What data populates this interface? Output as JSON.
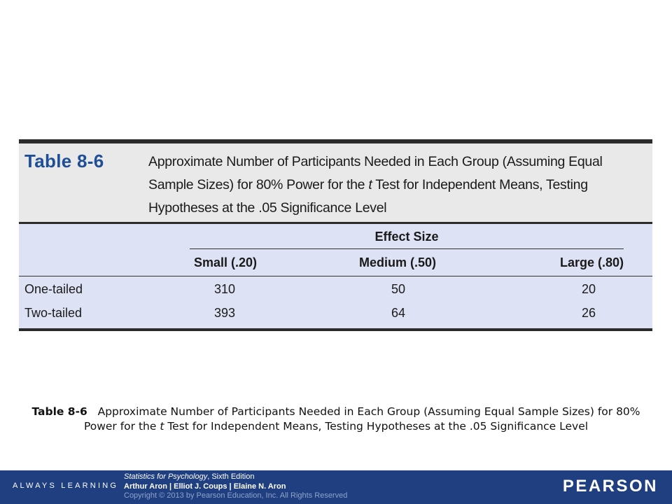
{
  "table": {
    "label": "Table 8-6",
    "title": "Approximate Number of Participants Needed in Each Group (Assuming Equal Sample Sizes) for 80% Power for the t Test for Independent Means, Testing Hypotheses at the .05 Significance Level",
    "title_lines": [
      "Approximate Number of Participants Needed in Each Group (Assuming Equal",
      "Sample Sizes) for 80% Power for the ",
      "t",
      " Test for Independent Means, Testing",
      "Hypotheses at the .05 Significance Level"
    ],
    "spanner": "Effect Size",
    "columns": [
      "Small (.20)",
      "Medium (.50)",
      "Large (.80)"
    ],
    "rows": [
      {
        "label": "One-tailed",
        "values": [
          "310",
          "50",
          "20"
        ]
      },
      {
        "label": "Two-tailed",
        "values": [
          "393",
          "64",
          "26"
        ]
      }
    ]
  },
  "caption": {
    "label": "Table 8-6",
    "text_1": "Approximate Number of Participants Needed in Each Group (Assuming Equal Sample Sizes) for 80% Power for the ",
    "t": "t",
    "text_2": " Test for Independent Means, Testing Hypotheses at the .05 Significance Level"
  },
  "footer": {
    "always_learning": "ALWAYS LEARNING",
    "book_title": "Statistics for Psychology",
    "edition": ", Sixth Edition",
    "authors": "Arthur Aron | Elliot J. Coups | Elaine N. Aron",
    "copyright": "Copyright © 2013 by Pearson Education, Inc. All Rights Reserved",
    "brand": "PEARSON"
  },
  "colors": {
    "label_blue": "#1e4f96",
    "header_band": "#e9e9e9",
    "body_band": "#dde3f4",
    "footer_blue": "#1f3f80"
  }
}
